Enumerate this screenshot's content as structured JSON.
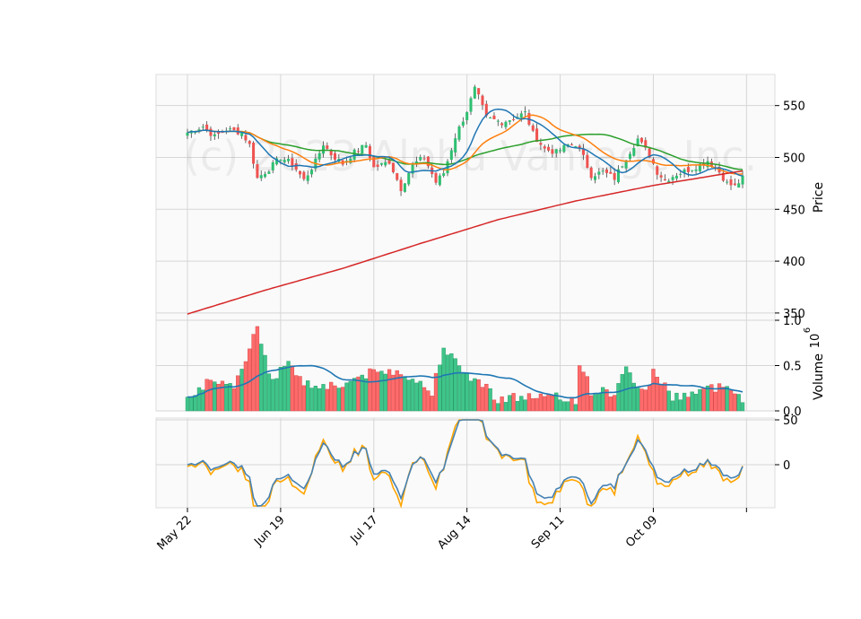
{
  "watermark": "(c) 2023 Alpha Vantage Inc.",
  "chart_data": {
    "type": "candlestick",
    "x_tick_labels": [
      "May 22",
      "Jun 19",
      "Jul 17",
      "Aug 14",
      "Sep 11",
      "Oct 09"
    ],
    "price_axis": {
      "label": "Price",
      "ticks": [
        350,
        400,
        450,
        500,
        550
      ],
      "range": [
        343,
        580
      ]
    },
    "volume_axis": {
      "label": "Volume",
      "exponent_label": "10",
      "exponent": "6",
      "ticks": [
        "0.0",
        "0.5",
        "1.0"
      ],
      "range": [
        0,
        1.0
      ]
    },
    "oscillator_axis": {
      "ticks": [
        "0",
        "50"
      ],
      "range": [
        -48,
        52
      ]
    },
    "colors": {
      "up": "#26a69a",
      "up_body": "#2fbf71",
      "down": "#ef5350",
      "ma_fast": "#1f77b4",
      "ma_mid": "#ff7f0e",
      "ma_slow": "#2ca02c",
      "ma_long": "#d62728",
      "osc_a": "#4682b4",
      "osc_b": "#ffa500",
      "vol_ma": "#1f77b4"
    },
    "close_keyframes": [
      [
        0,
        524
      ],
      [
        4,
        530
      ],
      [
        7,
        520
      ],
      [
        10,
        527
      ],
      [
        14,
        524
      ],
      [
        16,
        512
      ],
      [
        18,
        480
      ],
      [
        21,
        489
      ],
      [
        24,
        500
      ],
      [
        27,
        494
      ],
      [
        30,
        478
      ],
      [
        33,
        496
      ],
      [
        35,
        513
      ],
      [
        37,
        503
      ],
      [
        40,
        494
      ],
      [
        43,
        505
      ],
      [
        46,
        512
      ],
      [
        48,
        490
      ],
      [
        52,
        496
      ],
      [
        55,
        470
      ],
      [
        58,
        493
      ],
      [
        61,
        500
      ],
      [
        64,
        476
      ],
      [
        66,
        485
      ],
      [
        69,
        520
      ],
      [
        72,
        545
      ],
      [
        74,
        566
      ],
      [
        75,
        558
      ],
      [
        77,
        538
      ],
      [
        81,
        534
      ],
      [
        84,
        538
      ],
      [
        87,
        543
      ],
      [
        89,
        523
      ],
      [
        92,
        508
      ],
      [
        95,
        505
      ],
      [
        98,
        512
      ],
      [
        100,
        513
      ],
      [
        102,
        500
      ],
      [
        104,
        483
      ],
      [
        107,
        486
      ],
      [
        110,
        480
      ],
      [
        113,
        500
      ],
      [
        116,
        518
      ],
      [
        119,
        502
      ],
      [
        121,
        486
      ],
      [
        123,
        478
      ],
      [
        126,
        484
      ],
      [
        129,
        488
      ],
      [
        132,
        493
      ],
      [
        134,
        497
      ],
      [
        137,
        486
      ],
      [
        139,
        475
      ],
      [
        141,
        472
      ],
      [
        143,
        480
      ]
    ],
    "ma_long_keyframes": [
      [
        0,
        349
      ],
      [
        20,
        372
      ],
      [
        40,
        393
      ],
      [
        60,
        417
      ],
      [
        80,
        440
      ],
      [
        100,
        458
      ],
      [
        120,
        473
      ],
      [
        143,
        487
      ]
    ],
    "volume_keyframes": [
      [
        0,
        0.18
      ],
      [
        5,
        0.3
      ],
      [
        12,
        0.25
      ],
      [
        18,
        0.95
      ],
      [
        22,
        0.3
      ],
      [
        26,
        0.58
      ],
      [
        30,
        0.3
      ],
      [
        40,
        0.28
      ],
      [
        45,
        0.4
      ],
      [
        55,
        0.45
      ],
      [
        63,
        0.2
      ],
      [
        66,
        0.75
      ],
      [
        70,
        0.45
      ],
      [
        75,
        0.33
      ],
      [
        80,
        0.14
      ],
      [
        90,
        0.16
      ],
      [
        100,
        0.12
      ],
      [
        101,
        0.55
      ],
      [
        104,
        0.22
      ],
      [
        110,
        0.2
      ],
      [
        113,
        0.45
      ],
      [
        118,
        0.2
      ],
      [
        120,
        0.45
      ],
      [
        125,
        0.15
      ],
      [
        135,
        0.25
      ],
      [
        140,
        0.28
      ],
      [
        143,
        0.14
      ]
    ],
    "n_bars": 144
  }
}
